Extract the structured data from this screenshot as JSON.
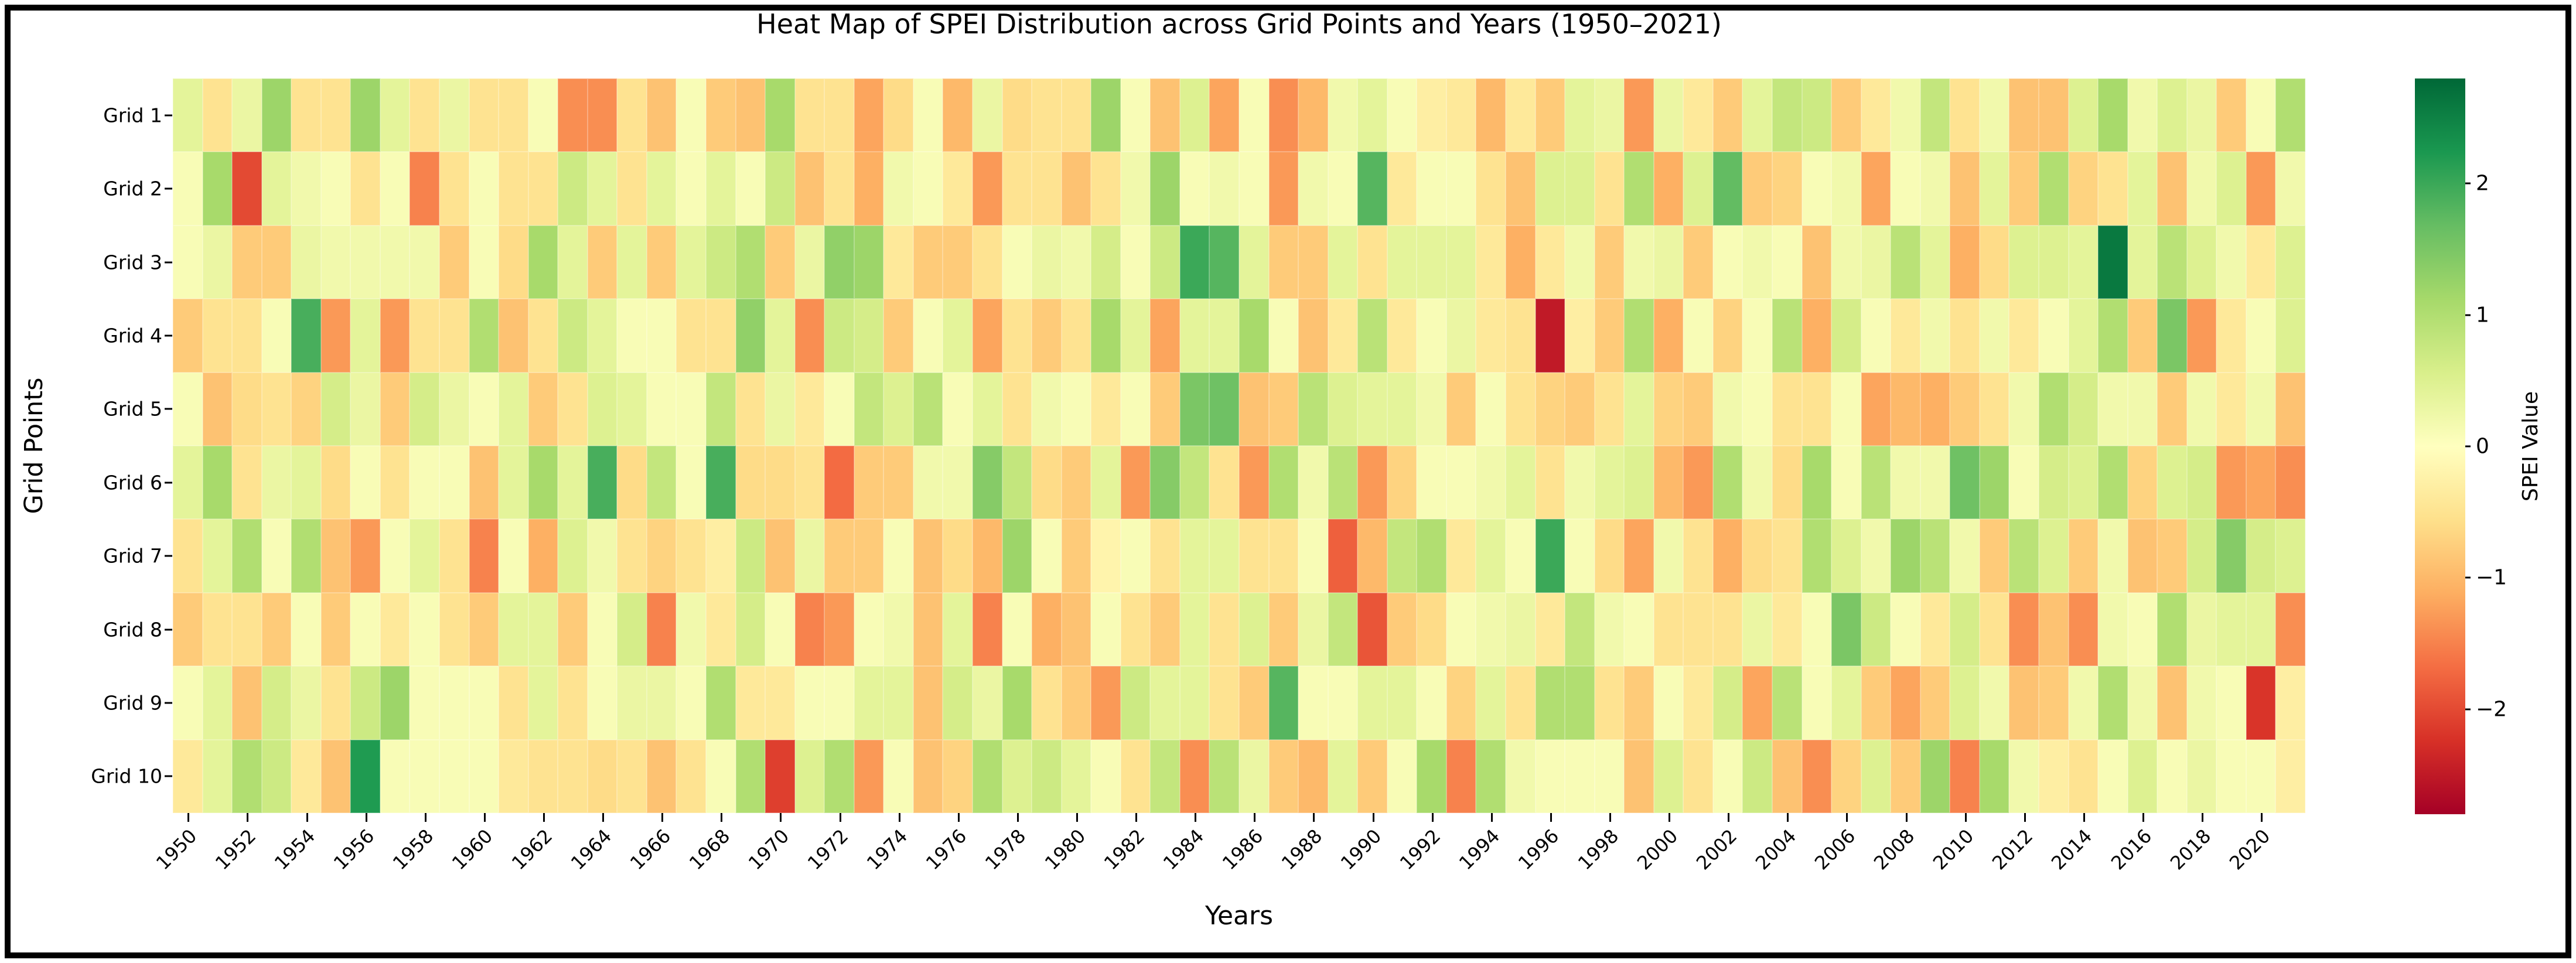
{
  "title": "Heat Map of SPEI Distribution across Grid Points and Years (1950–2021)",
  "axes": {
    "x_label": "Years",
    "y_label": "Grid Points",
    "x_ticks": [
      "1950",
      "1952",
      "1954",
      "1956",
      "1958",
      "1960",
      "1962",
      "1964",
      "1966",
      "1968",
      "1970",
      "1972",
      "1974",
      "1976",
      "1978",
      "1980",
      "1982",
      "1984",
      "1986",
      "1988",
      "1990",
      "1992",
      "1994",
      "1996",
      "1998",
      "2000",
      "2002",
      "2004",
      "2006",
      "2008",
      "2010",
      "2012",
      "2014",
      "2016",
      "2018",
      "2020"
    ],
    "y_ticks": [
      "Grid 1",
      "Grid 2",
      "Grid 3",
      "Grid 4",
      "Grid 5",
      "Grid 6",
      "Grid 7",
      "Grid 8",
      "Grid 9",
      "Grid 10"
    ]
  },
  "colorbar": {
    "label": "SPEI Value",
    "ticks": [
      {
        "label": "2",
        "value": 2
      },
      {
        "label": "1",
        "value": 1
      },
      {
        "label": "0",
        "value": 0
      },
      {
        "label": "−1",
        "value": -1
      },
      {
        "label": "−2",
        "value": -2
      }
    ]
  },
  "colormap": {
    "name": "RdYlGn",
    "stops": [
      "#a50026",
      "#d73027",
      "#f46d43",
      "#fdae61",
      "#fee08b",
      "#ffffbf",
      "#d9ef8b",
      "#a6d96a",
      "#66bd63",
      "#1a9850",
      "#006837"
    ]
  },
  "chart_data": {
    "type": "heatmap",
    "title": "Heat Map of SPEI Distribution across Grid Points and Years (1950–2021)",
    "xlabel": "Years",
    "ylabel": "Grid Points",
    "x": [
      1950,
      1951,
      1952,
      1953,
      1954,
      1955,
      1956,
      1957,
      1958,
      1959,
      1960,
      1961,
      1962,
      1963,
      1964,
      1965,
      1966,
      1967,
      1968,
      1969,
      1970,
      1971,
      1972,
      1973,
      1974,
      1975,
      1976,
      1977,
      1978,
      1979,
      1980,
      1981,
      1982,
      1983,
      1984,
      1985,
      1986,
      1987,
      1988,
      1989,
      1990,
      1991,
      1992,
      1993,
      1994,
      1995,
      1996,
      1997,
      1998,
      1999,
      2000,
      2001,
      2002,
      2003,
      2004,
      2005,
      2006,
      2007,
      2008,
      2009,
      2010,
      2011,
      2012,
      2013,
      2014,
      2015,
      2016,
      2017,
      2018,
      2019,
      2020,
      2021
    ],
    "vmin": -2.8,
    "vmax": 2.8,
    "legend_position": "right-colorbar",
    "grid": false,
    "series": [
      {
        "name": "Grid 1",
        "values": [
          0.4,
          -0.5,
          0.3,
          1.2,
          -0.5,
          -0.5,
          1.2,
          0.4,
          -0.5,
          0.3,
          -0.5,
          -0.5,
          0.1,
          -1.4,
          -1.4,
          -0.5,
          -0.9,
          0.1,
          -0.8,
          -0.9,
          1.1,
          -0.5,
          -0.5,
          -1.2,
          -0.6,
          0.1,
          -1.0,
          0.3,
          -0.6,
          -0.5,
          -0.5,
          1.2,
          0.1,
          -0.9,
          0.5,
          -1.2,
          0.1,
          -1.4,
          -1.0,
          0.2,
          0.4,
          0.1,
          -0.3,
          -0.4,
          -1.0,
          -0.4,
          -0.8,
          0.4,
          0.3,
          -1.3,
          0.3,
          -0.4,
          -0.8,
          0.4,
          0.8,
          0.7,
          -0.8,
          -0.4,
          0.2,
          0.8,
          -0.5,
          0.2,
          -0.9,
          -0.9,
          0.5,
          1.1,
          0.2,
          0.5,
          0.3,
          -0.8,
          0.1,
          1.0
        ]
      },
      {
        "name": "Grid 2",
        "values": [
          0.1,
          1.1,
          -2.0,
          0.4,
          0.2,
          0.1,
          -0.5,
          0.1,
          -1.5,
          -0.5,
          0.1,
          -0.5,
          -0.5,
          0.7,
          0.4,
          -0.5,
          0.4,
          0.1,
          0.4,
          0.1,
          0.7,
          -0.9,
          -0.5,
          -1.1,
          0.2,
          0.1,
          -0.4,
          -1.3,
          -0.5,
          -0.5,
          -0.9,
          -0.5,
          0.2,
          1.2,
          0.1,
          0.2,
          0.1,
          -1.3,
          0.2,
          0.1,
          1.8,
          -0.4,
          0.1,
          0.1,
          -0.5,
          -0.9,
          0.5,
          0.5,
          -0.5,
          1.0,
          -1.1,
          0.5,
          1.7,
          -0.8,
          -0.7,
          0.1,
          0.2,
          -1.2,
          0.1,
          0.2,
          -0.9,
          0.4,
          -0.8,
          1.0,
          -0.7,
          -0.5,
          0.4,
          -0.9,
          0.2,
          0.5,
          -1.3,
          0.2
        ]
      },
      {
        "name": "Grid 3",
        "values": [
          0.1,
          0.3,
          -0.8,
          -0.8,
          0.3,
          0.2,
          0.2,
          0.2,
          0.2,
          -0.8,
          0.1,
          -0.6,
          1.1,
          0.4,
          -0.8,
          0.4,
          -0.8,
          0.4,
          0.7,
          1.0,
          -0.8,
          0.3,
          1.3,
          1.2,
          -0.4,
          -0.8,
          -0.8,
          -0.5,
          0.1,
          0.3,
          0.2,
          0.6,
          0.1,
          0.7,
          2.0,
          1.8,
          0.4,
          -0.8,
          -0.8,
          0.4,
          -0.5,
          0.4,
          0.4,
          0.4,
          -0.4,
          -1.1,
          -0.4,
          0.2,
          -0.8,
          0.2,
          0.3,
          -0.8,
          0.1,
          0.2,
          0.1,
          -0.9,
          0.2,
          0.3,
          0.9,
          0.4,
          -1.1,
          -0.6,
          0.5,
          0.5,
          0.4,
          2.6,
          0.4,
          0.9,
          0.5,
          0.2,
          -0.4,
          0.5
        ]
      },
      {
        "name": "Grid 4",
        "values": [
          -0.8,
          -0.5,
          -0.5,
          0.1,
          1.9,
          -1.3,
          0.4,
          -1.3,
          -0.5,
          -0.5,
          1.0,
          -0.9,
          -0.5,
          0.7,
          0.4,
          0.1,
          0.1,
          -0.5,
          -0.5,
          1.3,
          0.4,
          -1.4,
          0.7,
          0.6,
          -0.8,
          0.1,
          0.4,
          -1.2,
          -0.5,
          -0.8,
          -0.5,
          1.1,
          0.4,
          -1.2,
          0.4,
          0.4,
          1.1,
          0.1,
          -0.9,
          -0.4,
          0.9,
          -0.4,
          0.1,
          0.3,
          -0.4,
          -0.5,
          -2.5,
          -0.3,
          -0.8,
          1.0,
          -1.1,
          0.1,
          -0.7,
          0.1,
          0.9,
          -1.1,
          0.6,
          0.1,
          -0.4,
          0.2,
          -0.5,
          0.2,
          -0.4,
          0.1,
          0.4,
          1.0,
          -0.8,
          1.5,
          -1.3,
          -0.4,
          0.1,
          0.5
        ]
      },
      {
        "name": "Grid 5",
        "values": [
          0.1,
          -0.9,
          -0.6,
          -0.5,
          -0.7,
          0.6,
          0.3,
          -0.8,
          0.6,
          0.3,
          0.1,
          0.4,
          -0.8,
          -0.5,
          0.5,
          0.4,
          0.1,
          0.1,
          0.8,
          -0.5,
          0.3,
          -0.4,
          0.1,
          0.8,
          0.5,
          0.9,
          0.1,
          0.4,
          -0.5,
          0.2,
          0.1,
          -0.4,
          0.1,
          -0.8,
          1.5,
          1.6,
          -0.9,
          -0.8,
          0.9,
          0.5,
          0.4,
          0.4,
          0.2,
          -0.8,
          0.1,
          -0.5,
          -0.7,
          -0.8,
          -0.5,
          0.4,
          -0.7,
          -0.8,
          0.2,
          0.1,
          -0.5,
          -0.5,
          0.1,
          -1.2,
          -1.0,
          -1.1,
          -0.8,
          -0.5,
          0.2,
          1.0,
          0.6,
          0.2,
          0.2,
          -0.8,
          0.2,
          -0.4,
          0.2,
          -0.9
        ]
      },
      {
        "name": "Grid 6",
        "values": [
          0.4,
          1.1,
          -0.5,
          0.3,
          0.4,
          -0.6,
          0.1,
          -0.5,
          0.1,
          0.1,
          -0.9,
          0.4,
          1.1,
          0.4,
          1.9,
          -0.6,
          0.8,
          0.1,
          1.9,
          -0.6,
          -0.6,
          -0.5,
          -1.7,
          -0.8,
          -0.8,
          0.2,
          0.2,
          1.4,
          0.8,
          -0.6,
          -0.8,
          0.4,
          -1.3,
          1.4,
          0.8,
          -0.5,
          -1.3,
          1.0,
          0.2,
          0.9,
          -1.3,
          -0.7,
          0.1,
          0.1,
          0.2,
          0.4,
          -0.5,
          0.2,
          0.4,
          0.5,
          -1.0,
          -1.3,
          1.0,
          0.2,
          -0.6,
          1.1,
          0.1,
          0.9,
          0.2,
          0.2,
          1.6,
          1.2,
          0.1,
          0.6,
          0.5,
          1.0,
          -0.7,
          0.5,
          0.6,
          -1.3,
          -1.2,
          -1.4
        ]
      },
      {
        "name": "Grid 7",
        "values": [
          -0.5,
          0.4,
          1.0,
          0.1,
          1.0,
          -0.9,
          -1.3,
          0.1,
          0.4,
          -0.5,
          -1.5,
          0.1,
          -1.1,
          0.5,
          0.2,
          -0.5,
          -0.7,
          -0.5,
          -0.3,
          0.7,
          -0.9,
          0.3,
          -0.8,
          -0.8,
          0.1,
          -0.9,
          -0.6,
          -1.0,
          1.2,
          0.1,
          -0.8,
          -0.2,
          0.1,
          -0.5,
          0.4,
          0.4,
          -0.5,
          -0.5,
          0.1,
          -1.8,
          -1.0,
          0.8,
          1.0,
          -0.4,
          0.4,
          0.1,
          2.0,
          0.1,
          -0.6,
          -1.2,
          0.2,
          -0.5,
          -1.1,
          -0.6,
          -0.5,
          1.0,
          0.5,
          0.2,
          1.2,
          0.9,
          0.2,
          -0.8,
          0.9,
          0.5,
          -0.8,
          0.2,
          -0.9,
          -0.8,
          0.6,
          1.4,
          0.6,
          0.5
        ]
      },
      {
        "name": "Grid 8",
        "values": [
          -0.8,
          -0.5,
          -0.5,
          -0.8,
          0.1,
          -0.8,
          0.1,
          -0.4,
          0.1,
          -0.5,
          -0.8,
          0.4,
          0.4,
          -0.8,
          0.1,
          0.6,
          -1.5,
          0.2,
          -0.4,
          0.6,
          0.1,
          -1.5,
          -1.3,
          0.1,
          0.2,
          -0.9,
          0.4,
          -1.5,
          0.1,
          -1.1,
          -0.9,
          0.1,
          -0.5,
          -0.8,
          0.4,
          -0.5,
          0.5,
          -0.8,
          0.3,
          0.8,
          -1.9,
          -0.8,
          -0.6,
          0.1,
          0.2,
          0.3,
          -0.4,
          0.8,
          0.2,
          0.1,
          -0.5,
          -0.5,
          -0.5,
          0.3,
          -0.4,
          0.1,
          1.5,
          0.7,
          0.1,
          -0.4,
          0.6,
          -0.5,
          -1.4,
          -0.9,
          -1.4,
          0.2,
          0.1,
          1.0,
          0.3,
          0.4,
          0.4,
          -1.4
        ]
      },
      {
        "name": "Grid 9",
        "values": [
          0.1,
          0.4,
          -0.9,
          0.6,
          0.3,
          -0.5,
          0.7,
          1.2,
          0.1,
          0.1,
          0.1,
          -0.5,
          0.4,
          -0.5,
          0.1,
          0.3,
          0.3,
          0.1,
          1.0,
          -0.4,
          -0.4,
          0.1,
          0.1,
          0.4,
          0.4,
          -0.9,
          0.6,
          0.3,
          1.1,
          -0.5,
          -0.8,
          -1.3,
          0.7,
          0.4,
          0.4,
          -0.5,
          -0.8,
          1.8,
          0.1,
          0.1,
          0.4,
          0.4,
          0.1,
          -0.7,
          0.4,
          -0.5,
          1.0,
          1.0,
          -0.5,
          -0.8,
          0.1,
          -0.4,
          0.6,
          -1.2,
          0.9,
          0.1,
          0.4,
          -0.8,
          -1.2,
          -0.8,
          0.5,
          0.2,
          -0.9,
          -0.8,
          0.2,
          1.0,
          0.2,
          -0.9,
          0.2,
          0.1,
          -2.2,
          -0.3
        ]
      },
      {
        "name": "Grid 10",
        "values": [
          -0.4,
          0.4,
          1.0,
          0.7,
          -0.4,
          -0.9,
          2.2,
          0.1,
          0.1,
          0.1,
          0.1,
          -0.4,
          -0.5,
          -0.5,
          -0.6,
          -0.5,
          -0.9,
          -0.5,
          0.1,
          1.0,
          -2.1,
          0.5,
          1.0,
          -1.3,
          0.1,
          -0.9,
          -0.7,
          1.0,
          0.5,
          0.7,
          0.4,
          0.1,
          -0.5,
          0.8,
          -1.4,
          0.9,
          0.3,
          -0.8,
          -1.0,
          0.4,
          -0.8,
          0.1,
          1.1,
          -1.5,
          1.0,
          0.2,
          0.1,
          0.1,
          0.1,
          -0.9,
          0.5,
          -0.5,
          0.1,
          0.7,
          -0.9,
          -1.4,
          -0.7,
          0.5,
          -0.8,
          1.2,
          -1.5,
          1.1,
          0.2,
          -0.3,
          -0.5,
          0.1,
          0.5,
          0.1,
          0.3,
          0.1,
          0.1,
          -0.3
        ]
      }
    ]
  }
}
